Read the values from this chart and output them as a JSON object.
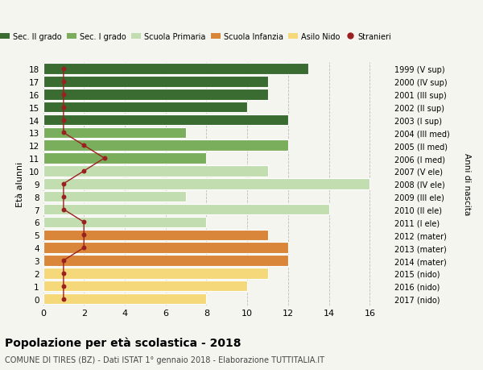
{
  "ages": [
    18,
    17,
    16,
    15,
    14,
    13,
    12,
    11,
    10,
    9,
    8,
    7,
    6,
    5,
    4,
    3,
    2,
    1,
    0
  ],
  "right_labels": [
    "1999 (V sup)",
    "2000 (IV sup)",
    "2001 (III sup)",
    "2002 (II sup)",
    "2003 (I sup)",
    "2004 (III med)",
    "2005 (II med)",
    "2006 (I med)",
    "2007 (V ele)",
    "2008 (IV ele)",
    "2009 (III ele)",
    "2010 (II ele)",
    "2011 (I ele)",
    "2012 (mater)",
    "2013 (mater)",
    "2014 (mater)",
    "2015 (nido)",
    "2016 (nido)",
    "2017 (nido)"
  ],
  "bar_values": [
    13,
    11,
    11,
    10,
    12,
    7,
    12,
    8,
    11,
    16,
    7,
    14,
    8,
    11,
    12,
    12,
    11,
    10,
    8
  ],
  "bar_colors": [
    "#3a6b30",
    "#3a6b30",
    "#3a6b30",
    "#3a6b30",
    "#3a6b30",
    "#7aad5c",
    "#7aad5c",
    "#7aad5c",
    "#c2deb0",
    "#c2deb0",
    "#c2deb0",
    "#c2deb0",
    "#c2deb0",
    "#d9863a",
    "#d9863a",
    "#d9863a",
    "#f5d87a",
    "#f5d87a",
    "#f5d87a"
  ],
  "stranieri_values": [
    1,
    1,
    1,
    1,
    1,
    1,
    2,
    3,
    2,
    1,
    1,
    1,
    2,
    2,
    2,
    1,
    1,
    1,
    1
  ],
  "stranieri_color": "#9b2020",
  "title": "Popolazione per età scolastica - 2018",
  "subtitle": "COMUNE DI TIRES (BZ) - Dati ISTAT 1° gennaio 2018 - Elaborazione TUTTITALIA.IT",
  "ylabel": "Età alunni",
  "right_ylabel": "Anni di nascita",
  "xlim": [
    0,
    17
  ],
  "xticks": [
    0,
    2,
    4,
    6,
    8,
    10,
    12,
    14,
    16
  ],
  "legend_labels": [
    "Sec. II grado",
    "Sec. I grado",
    "Scuola Primaria",
    "Scuola Infanzia",
    "Asilo Nido",
    "Stranieri"
  ],
  "legend_colors": [
    "#3a6b30",
    "#7aad5c",
    "#c2deb0",
    "#d9863a",
    "#f5d87a",
    "#9b2020"
  ],
  "background_color": "#f5f5f0",
  "grid_color": "#bbbbbb",
  "bar_height": 0.85
}
